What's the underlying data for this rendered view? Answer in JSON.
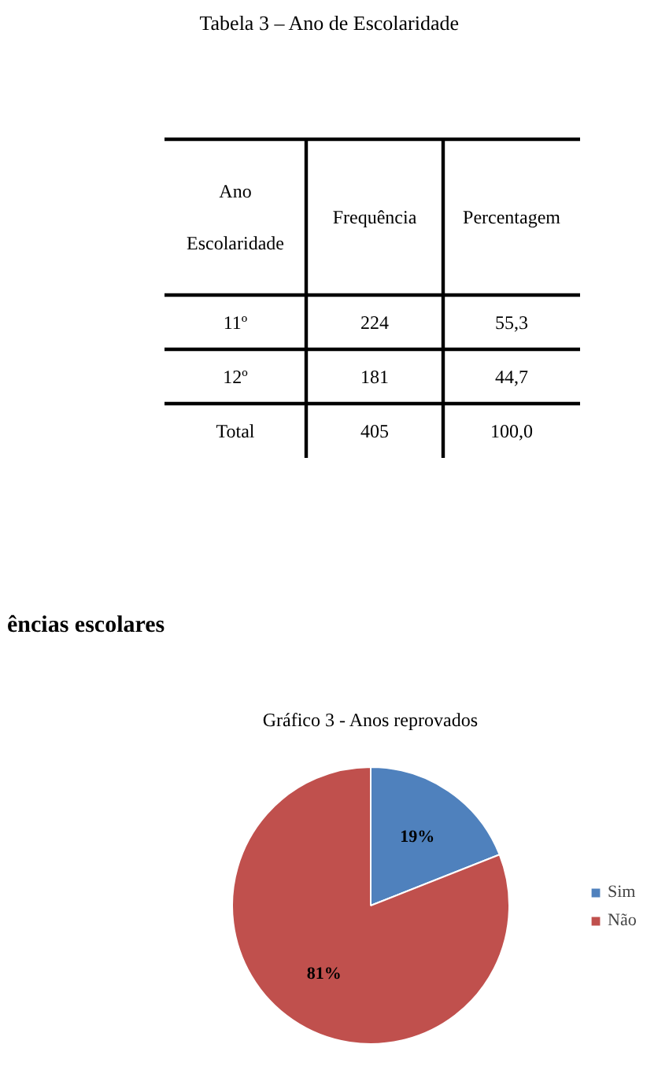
{
  "chart_data": [
    {
      "type": "other",
      "title": "Tabela 3 – Ano de Escolaridade",
      "xlabel": "Ano Escolaridade",
      "categories": [
        "11º",
        "12º",
        "Total"
      ],
      "data_labels": true,
      "series": [
        {
          "name": "Frequência",
          "values": [
            224,
            181,
            405
          ]
        },
        {
          "name": "Percentagem",
          "values": [
            55.3,
            44.7,
            100.0
          ],
          "value_labels": [
            "55,3",
            "44,7",
            "100,0"
          ]
        }
      ]
    },
    {
      "type": "pie",
      "title": "Gráfico 3 - Anos reprovados",
      "annotations": [
        "ências escolares"
      ],
      "categories": [
        "Sim",
        "Não"
      ],
      "values": [
        19,
        81
      ],
      "colors": [
        "#4f81bd",
        "#c0504d"
      ],
      "value_labels": [
        "19%",
        "81%"
      ],
      "legend": "right"
    }
  ]
}
